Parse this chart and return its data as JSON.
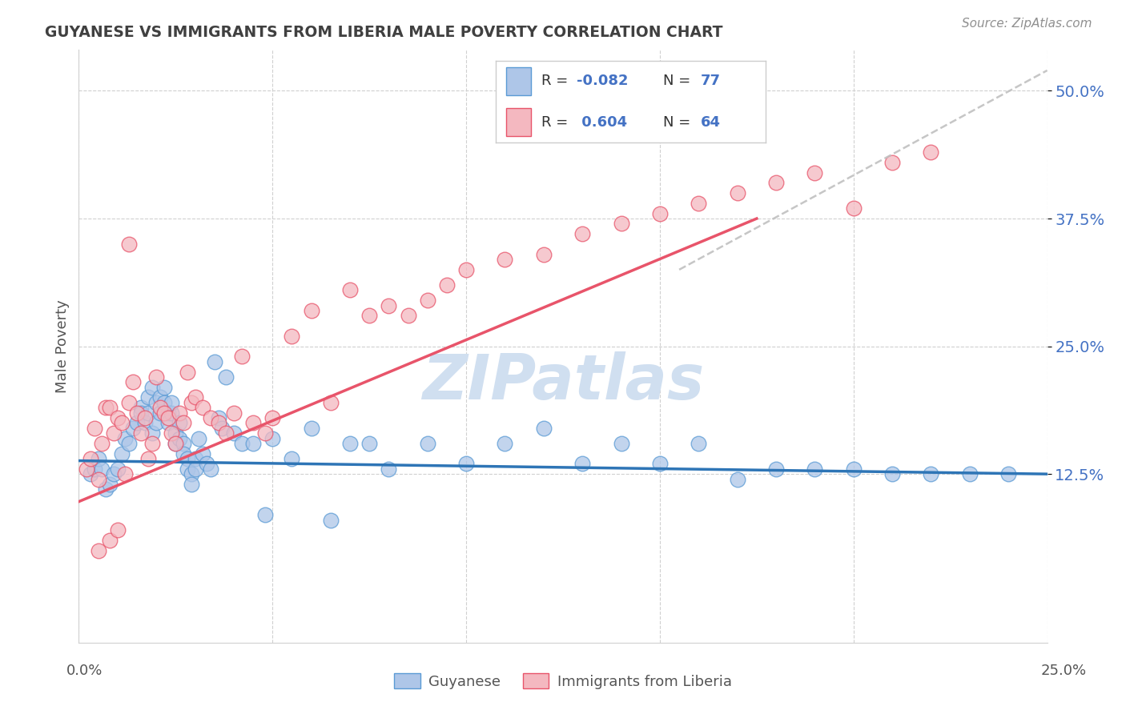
{
  "title": "GUYANESE VS IMMIGRANTS FROM LIBERIA MALE POVERTY CORRELATION CHART",
  "source": "Source: ZipAtlas.com",
  "ylabel": "Male Poverty",
  "ytick_labels": [
    "12.5%",
    "25.0%",
    "37.5%",
    "50.0%"
  ],
  "ytick_values": [
    0.125,
    0.25,
    0.375,
    0.5
  ],
  "xlim": [
    0.0,
    0.25
  ],
  "ylim": [
    -0.04,
    0.54
  ],
  "legend_blue_label": "Guyanese",
  "legend_pink_label": "Immigrants from Liberia",
  "blue_dot_color": "#aec6e8",
  "pink_dot_color": "#f4b8c0",
  "blue_edge_color": "#5b9bd5",
  "pink_edge_color": "#e8546a",
  "trend_blue_color": "#2e75b6",
  "trend_pink_color": "#e8546a",
  "trend_dashed_color": "#c0c0c0",
  "watermark_color": "#d0dff0",
  "ytick_color": "#4472c4",
  "background_color": "#ffffff",
  "grid_color": "#d0d0d0",
  "title_color": "#404040",
  "source_color": "#909090",
  "legend_R_color": "#333333",
  "legend_N_color": "#4472c4",
  "guyanese_x": [
    0.003,
    0.004,
    0.005,
    0.006,
    0.007,
    0.008,
    0.009,
    0.01,
    0.011,
    0.012,
    0.013,
    0.014,
    0.015,
    0.016,
    0.016,
    0.017,
    0.018,
    0.018,
    0.019,
    0.019,
    0.02,
    0.02,
    0.021,
    0.021,
    0.022,
    0.022,
    0.023,
    0.023,
    0.024,
    0.024,
    0.025,
    0.025,
    0.026,
    0.026,
    0.027,
    0.027,
    0.028,
    0.028,
    0.029,
    0.029,
    0.03,
    0.03,
    0.031,
    0.032,
    0.033,
    0.034,
    0.035,
    0.036,
    0.037,
    0.038,
    0.04,
    0.042,
    0.045,
    0.048,
    0.05,
    0.055,
    0.06,
    0.065,
    0.07,
    0.075,
    0.08,
    0.09,
    0.1,
    0.11,
    0.12,
    0.13,
    0.14,
    0.15,
    0.16,
    0.17,
    0.18,
    0.19,
    0.2,
    0.21,
    0.22,
    0.23,
    0.24
  ],
  "guyanese_y": [
    0.125,
    0.13,
    0.14,
    0.13,
    0.11,
    0.115,
    0.125,
    0.13,
    0.145,
    0.16,
    0.155,
    0.17,
    0.175,
    0.19,
    0.185,
    0.175,
    0.2,
    0.185,
    0.165,
    0.21,
    0.195,
    0.175,
    0.185,
    0.2,
    0.21,
    0.195,
    0.185,
    0.175,
    0.185,
    0.195,
    0.165,
    0.155,
    0.175,
    0.16,
    0.155,
    0.145,
    0.14,
    0.13,
    0.125,
    0.115,
    0.14,
    0.13,
    0.16,
    0.145,
    0.135,
    0.13,
    0.235,
    0.18,
    0.17,
    0.22,
    0.165,
    0.155,
    0.155,
    0.085,
    0.16,
    0.14,
    0.17,
    0.08,
    0.155,
    0.155,
    0.13,
    0.155,
    0.135,
    0.155,
    0.17,
    0.135,
    0.155,
    0.135,
    0.155,
    0.12,
    0.13,
    0.13,
    0.13,
    0.125,
    0.125,
    0.125,
    0.125
  ],
  "liberia_x": [
    0.002,
    0.003,
    0.004,
    0.005,
    0.006,
    0.007,
    0.008,
    0.009,
    0.01,
    0.011,
    0.012,
    0.013,
    0.014,
    0.015,
    0.016,
    0.017,
    0.018,
    0.019,
    0.02,
    0.021,
    0.022,
    0.023,
    0.024,
    0.025,
    0.026,
    0.027,
    0.028,
    0.029,
    0.03,
    0.032,
    0.034,
    0.036,
    0.038,
    0.04,
    0.042,
    0.045,
    0.048,
    0.05,
    0.055,
    0.06,
    0.065,
    0.07,
    0.075,
    0.08,
    0.085,
    0.09,
    0.095,
    0.1,
    0.11,
    0.12,
    0.13,
    0.14,
    0.15,
    0.16,
    0.17,
    0.18,
    0.19,
    0.2,
    0.21,
    0.22,
    0.005,
    0.008,
    0.01,
    0.013
  ],
  "liberia_y": [
    0.13,
    0.14,
    0.17,
    0.12,
    0.155,
    0.19,
    0.19,
    0.165,
    0.18,
    0.175,
    0.125,
    0.195,
    0.215,
    0.185,
    0.165,
    0.18,
    0.14,
    0.155,
    0.22,
    0.19,
    0.185,
    0.18,
    0.165,
    0.155,
    0.185,
    0.175,
    0.225,
    0.195,
    0.2,
    0.19,
    0.18,
    0.175,
    0.165,
    0.185,
    0.24,
    0.175,
    0.165,
    0.18,
    0.26,
    0.285,
    0.195,
    0.305,
    0.28,
    0.29,
    0.28,
    0.295,
    0.31,
    0.325,
    0.335,
    0.34,
    0.36,
    0.37,
    0.38,
    0.39,
    0.4,
    0.41,
    0.42,
    0.385,
    0.43,
    0.44,
    0.05,
    0.06,
    0.07,
    0.35
  ],
  "blue_trend_x": [
    0.0,
    0.25
  ],
  "blue_trend_y": [
    0.138,
    0.125
  ],
  "pink_trend_x": [
    0.0,
    0.175
  ],
  "pink_trend_y": [
    0.098,
    0.375
  ],
  "dashed_trend_x": [
    0.155,
    0.25
  ],
  "dashed_trend_y": [
    0.325,
    0.52
  ]
}
